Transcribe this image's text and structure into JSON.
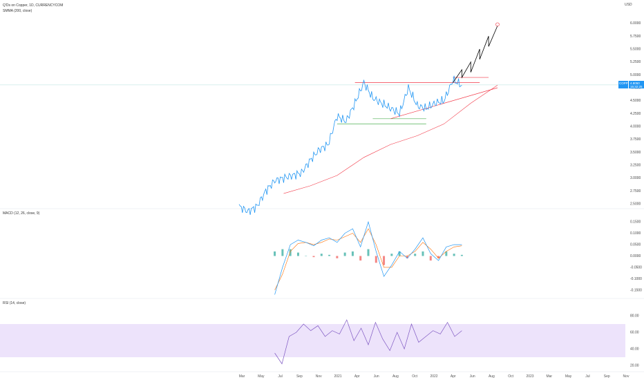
{
  "header": {
    "title": "Q'Ds on Copper, 1D, CURRENCYCOM",
    "indicator": "SMMA (200, close)",
    "currency": "USD"
  },
  "price_badge": {
    "symbol": "COPPER",
    "value": "4.8050",
    "countdown": "15:32:25"
  },
  "colors": {
    "price": "#2196f3",
    "smma": "#f23645",
    "resistance": "#f23645",
    "support": "#4caf50",
    "projection": "#000000",
    "macd_line": "#2196f3",
    "signal_line": "#ff6d00",
    "hist_pos": "#26a69a",
    "hist_neg": "#ef5350",
    "rsi": "#7e57c2",
    "rsi_band": "#ede3fb"
  },
  "chart_data": [
    {
      "type": "line",
      "title": "Q'Ds on Copper, 1D, CURRENCYCOM",
      "ylabel": "USD",
      "yticks": [
        "6.0000",
        "5.7500",
        "5.5000",
        "5.2500",
        "5.0000",
        "4.7500",
        "4.5000",
        "4.2500",
        "4.0000",
        "3.7500",
        "3.5000",
        "3.2500",
        "3.0000",
        "2.7500",
        "2.5000"
      ],
      "ylim": [
        2.5,
        6.25
      ],
      "x_ticks": [
        "Mar",
        "May",
        "Jul",
        "Sep",
        "Nov",
        "2021",
        "Apr",
        "Jun",
        "Aug",
        "Oct",
        "2022",
        "Apr",
        "Jun",
        "Aug",
        "Oct",
        "2023",
        "Mar",
        "May",
        "Jul",
        "Sep",
        "Nov"
      ],
      "series": [
        {
          "name": "price",
          "x": [
            "2020-03",
            "2020-04",
            "2020-05",
            "2020-06",
            "2020-07",
            "2020-08",
            "2020-09",
            "2020-10",
            "2020-11",
            "2020-12",
            "2021-01",
            "2021-02",
            "2021-03",
            "2021-04",
            "2021-05",
            "2021-06",
            "2021-07",
            "2021-08",
            "2021-09",
            "2021-10",
            "2021-11",
            "2021-12",
            "2022-01",
            "2022-02",
            "2022-03",
            "2022-04"
          ],
          "values": [
            2.45,
            2.35,
            2.45,
            2.75,
            2.95,
            3.0,
            3.05,
            3.1,
            3.35,
            3.55,
            3.65,
            4.2,
            4.1,
            4.45,
            4.85,
            4.55,
            4.45,
            4.35,
            4.25,
            4.75,
            4.4,
            4.35,
            4.45,
            4.5,
            4.9,
            4.8
          ]
        },
        {
          "name": "SMMA (200, close)",
          "x": [
            "2020-08",
            "2020-11",
            "2021-02",
            "2021-05",
            "2021-08",
            "2021-11",
            "2022-02",
            "2022-05",
            "2022-08"
          ],
          "values": [
            2.7,
            2.85,
            3.05,
            3.4,
            3.65,
            3.82,
            4.05,
            4.45,
            4.8
          ]
        },
        {
          "name": "projection",
          "x": [
            "2022-03",
            "2022-04",
            "2022-04",
            "2022-05",
            "2022-05",
            "2022-06",
            "2022-06",
            "2022-07",
            "2022-07",
            "2022-08"
          ],
          "values": [
            4.85,
            5.1,
            4.95,
            5.25,
            5.05,
            5.5,
            5.3,
            5.75,
            5.55,
            5.95
          ]
        }
      ],
      "annotations": [
        {
          "name": "resistance",
          "y": 4.85
        },
        {
          "name": "resistance-upper",
          "y": 4.95
        },
        {
          "name": "support",
          "y": 4.05
        },
        {
          "name": "support-upper",
          "y": 4.15
        }
      ]
    },
    {
      "type": "line",
      "title": "MACD (12, 26, close, 9)",
      "yticks": [
        "0.1500",
        "0.1000",
        "0.0500",
        "0.0000",
        "-0.0500",
        "-0.1000",
        "-0.1500"
      ],
      "ylim": [
        -0.175,
        0.175
      ],
      "series": [
        {
          "name": "macd",
          "values": [
            -0.17,
            -0.05,
            0.05,
            0.07,
            0.06,
            0.045,
            0.07,
            0.08,
            0.06,
            0.1,
            0.12,
            0.04,
            0.15,
            0.02,
            -0.09,
            -0.04,
            0.02,
            -0.01,
            0.03,
            0.08,
            0.01,
            -0.02,
            0.04,
            0.05,
            0.05
          ]
        },
        {
          "name": "signal",
          "values": [
            -0.15,
            -0.08,
            0.02,
            0.055,
            0.06,
            0.05,
            0.06,
            0.075,
            0.07,
            0.085,
            0.1,
            0.06,
            0.12,
            0.05,
            -0.05,
            -0.05,
            0.0,
            0.0,
            0.02,
            0.06,
            0.03,
            -0.01,
            0.02,
            0.04,
            0.045
          ]
        },
        {
          "name": "histogram",
          "values": [
            0.02,
            0.03,
            0.03,
            0.015,
            0.0,
            -0.005,
            0.01,
            0.005,
            -0.01,
            0.015,
            0.02,
            -0.02,
            0.03,
            -0.03,
            -0.04,
            0.01,
            0.02,
            -0.01,
            0.01,
            0.02,
            -0.02,
            -0.01,
            0.02,
            0.01,
            0.005
          ]
        }
      ]
    },
    {
      "type": "line",
      "title": "RSI (14, close)",
      "yticks": [
        "80.00",
        "60.00",
        "40.00",
        "20.00"
      ],
      "ylim": [
        15,
        90
      ],
      "band": [
        30,
        70
      ],
      "series": [
        {
          "name": "rsi",
          "values": [
            35,
            22,
            55,
            60,
            70,
            62,
            68,
            55,
            62,
            58,
            75,
            50,
            65,
            45,
            72,
            52,
            38,
            60,
            40,
            70,
            48,
            55,
            62,
            58,
            72,
            55,
            62
          ]
        }
      ]
    }
  ]
}
